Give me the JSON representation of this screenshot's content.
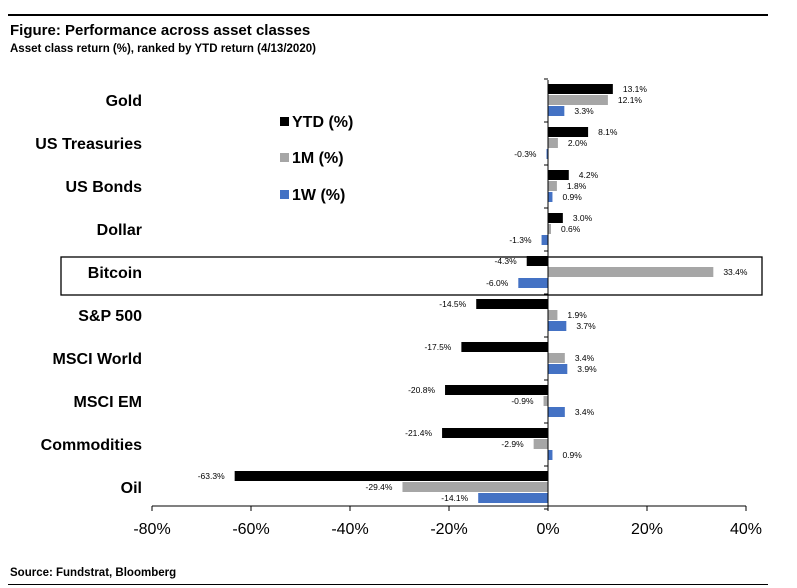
{
  "header": {
    "title": "Figure: Performance across asset classes",
    "subtitle": "Asset class return (%), ranked by YTD return (4/13/2020)"
  },
  "footer": {
    "source": "Source: Fundstrat, Bloomberg"
  },
  "colors": {
    "ytd": "#000000",
    "one_month": "#a6a6a6",
    "one_week": "#4472c4",
    "axis": "#000000"
  },
  "chart_data": {
    "type": "bar",
    "orientation": "horizontal",
    "categories": [
      "Gold",
      "US Treasuries",
      "US Bonds",
      "Dollar",
      "Bitcoin",
      "S&P 500",
      "MSCI World",
      "MSCI EM",
      "Commodities",
      "Oil"
    ],
    "series": [
      {
        "name": "YTD (%)",
        "values": [
          13.1,
          8.1,
          4.2,
          3.0,
          -4.3,
          -14.5,
          -17.5,
          -20.8,
          -21.4,
          -63.3
        ],
        "labels": [
          "13.1%",
          "8.1%",
          "4.2%",
          "3.0%",
          "-4.3%",
          "-14.5%",
          "-17.5%",
          "-20.8%",
          "-21.4%",
          "-63.3%"
        ]
      },
      {
        "name": "1M (%)",
        "values": [
          12.1,
          2.0,
          1.8,
          0.6,
          33.4,
          1.9,
          3.4,
          -0.9,
          -2.9,
          -29.4
        ],
        "labels": [
          "12.1%",
          "2.0%",
          "1.8%",
          "0.6%",
          "33.4%",
          "1.9%",
          "3.4%",
          "-0.9%",
          "-2.9%",
          "-29.4%"
        ]
      },
      {
        "name": "1W (%)",
        "values": [
          3.3,
          -0.3,
          0.9,
          -1.3,
          -6.0,
          3.7,
          3.9,
          3.4,
          0.9,
          -14.1
        ],
        "labels": [
          "3.3%",
          "-0.3%",
          "0.9%",
          "-1.3%",
          "-6.0%",
          "3.7%",
          "3.9%",
          "3.4%",
          "0.9%",
          "-14.1%"
        ]
      }
    ],
    "xlim": [
      -80,
      40
    ],
    "xticks": [
      -80,
      -60,
      -40,
      -20,
      0,
      20,
      40
    ],
    "xtick_labels": [
      "-80%",
      "-60%",
      "-40%",
      "-20%",
      "0%",
      "20%",
      "40%"
    ],
    "highlighted_category": "Bitcoin",
    "legend_position": "top-left, inside plot",
    "grid": false
  }
}
